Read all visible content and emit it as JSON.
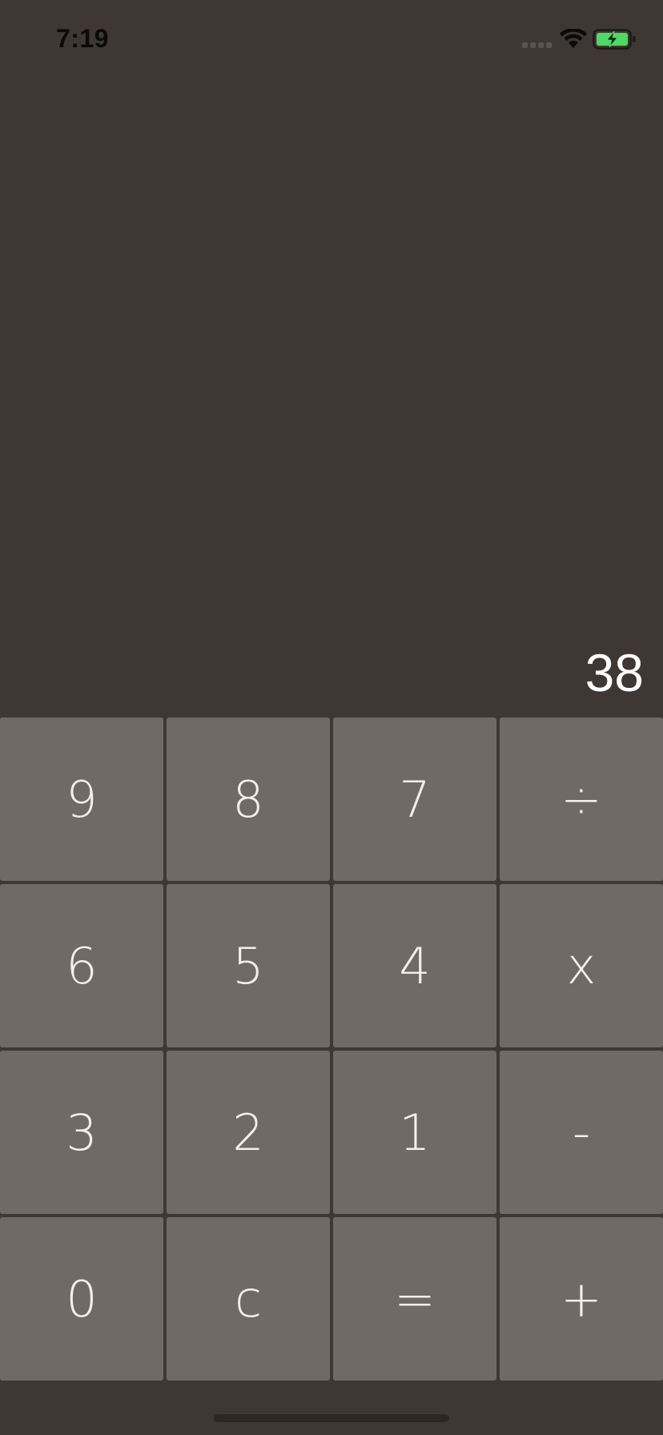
{
  "status_bar": {
    "time": "7:19",
    "signal_icon": "cellular-signal-icon",
    "wifi_icon": "wifi-icon",
    "battery_icon": "battery-charging-icon",
    "battery_color": "#4cd964"
  },
  "display": {
    "value": "38"
  },
  "keypad": {
    "keys": [
      {
        "name": "key-9",
        "label": "9"
      },
      {
        "name": "key-8",
        "label": "8"
      },
      {
        "name": "key-7",
        "label": "7"
      },
      {
        "name": "key-divide",
        "label": "÷"
      },
      {
        "name": "key-6",
        "label": "6"
      },
      {
        "name": "key-5",
        "label": "5"
      },
      {
        "name": "key-4",
        "label": "4"
      },
      {
        "name": "key-multiply",
        "label": "x"
      },
      {
        "name": "key-3",
        "label": "3"
      },
      {
        "name": "key-2",
        "label": "2"
      },
      {
        "name": "key-1",
        "label": "1"
      },
      {
        "name": "key-subtract",
        "label": "-"
      },
      {
        "name": "key-0",
        "label": "0"
      },
      {
        "name": "key-clear",
        "label": "c"
      },
      {
        "name": "key-equals",
        "label": "="
      },
      {
        "name": "key-add",
        "label": "+"
      }
    ]
  },
  "colors": {
    "background": "#3f3733",
    "key_background": "#706a66",
    "key_text": "#f2f0ee",
    "display_text": "#ffffff"
  }
}
